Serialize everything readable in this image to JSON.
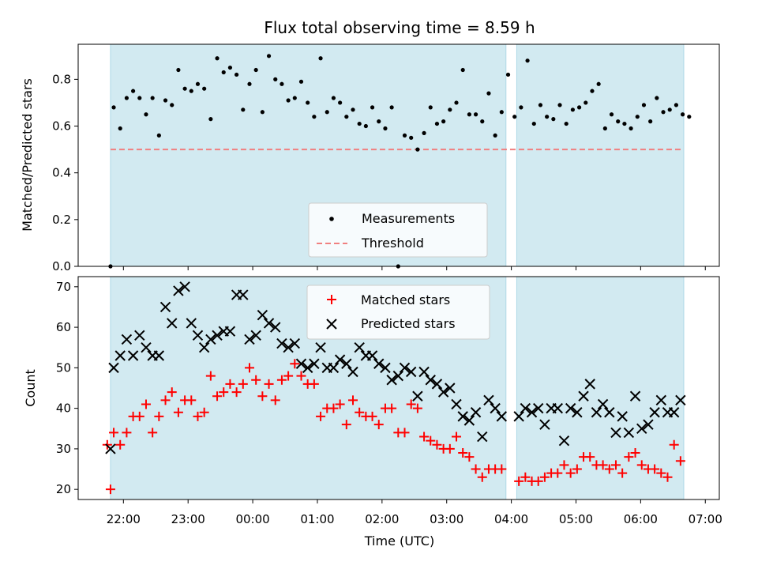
{
  "chart_data": [
    {
      "type": "scatter",
      "title": "Flux total observing time = 8.59 h",
      "xlabel": "",
      "ylabel": "Matched/Predicted stars",
      "ylim": [
        0,
        0.95
      ],
      "yticks": [
        "0.0",
        "0.2",
        "0.4",
        "0.6",
        "0.8"
      ],
      "ytick_values": [
        0.0,
        0.2,
        0.4,
        0.6,
        0.8
      ],
      "legend": {
        "placement": "lower-center",
        "entries": [
          "Measurements",
          "Threshold"
        ]
      },
      "threshold": 0.5,
      "colors": {
        "measurements": "#000000",
        "threshold": "#f08080",
        "shade": "#add8e6"
      },
      "series": [
        {
          "name": "Measurements",
          "marker": "dot",
          "x": [
            "21:48",
            "21:51",
            "21:57",
            "22:03",
            "22:09",
            "22:15",
            "22:21",
            "22:27",
            "22:33",
            "22:39",
            "22:45",
            "22:51",
            "22:57",
            "23:03",
            "23:09",
            "23:15",
            "23:21",
            "23:27",
            "23:33",
            "23:39",
            "23:45",
            "23:51",
            "23:57",
            "00:03",
            "00:09",
            "00:15",
            "00:21",
            "00:27",
            "00:33",
            "00:39",
            "00:45",
            "00:51",
            "00:57",
            "01:03",
            "01:09",
            "01:15",
            "01:21",
            "01:27",
            "01:33",
            "01:39",
            "01:45",
            "01:51",
            "01:57",
            "02:03",
            "02:09",
            "02:15",
            "02:21",
            "02:27",
            "02:33",
            "02:39",
            "02:45",
            "02:51",
            "02:57",
            "03:03",
            "03:09",
            "03:15",
            "03:21",
            "03:27",
            "03:33",
            "03:39",
            "03:45",
            "03:51",
            "03:57",
            "04:03",
            "04:09",
            "04:15",
            "04:21",
            "04:27",
            "04:33",
            "04:39",
            "04:45",
            "04:51",
            "04:57",
            "05:03",
            "05:09",
            "05:15",
            "05:21",
            "05:27",
            "05:33",
            "05:39",
            "05:45",
            "05:51",
            "05:57",
            "06:03",
            "06:09",
            "06:15",
            "06:21",
            "06:27",
            "06:33",
            "06:39",
            "06:45"
          ],
          "y": [
            0.0,
            0.68,
            0.59,
            0.72,
            0.75,
            0.72,
            0.65,
            0.72,
            0.56,
            0.71,
            0.69,
            0.84,
            0.76,
            0.75,
            0.78,
            0.76,
            0.63,
            0.89,
            0.83,
            0.85,
            0.82,
            0.67,
            0.78,
            0.84,
            0.66,
            0.9,
            0.8,
            0.78,
            0.71,
            0.72,
            0.79,
            0.7,
            0.64,
            0.89,
            0.66,
            0.72,
            0.7,
            0.64,
            0.67,
            0.61,
            0.6,
            0.68,
            0.62,
            0.59,
            0.68,
            0.0,
            0.56,
            0.55,
            0.5,
            0.57,
            0.68,
            0.61,
            0.62,
            0.67,
            0.7,
            0.84,
            0.65,
            0.65,
            0.62,
            0.74,
            0.56,
            0.66,
            0.82,
            0.64,
            0.68,
            0.88,
            0.61,
            0.69,
            0.64,
            0.63,
            0.69,
            0.61,
            0.67,
            0.68,
            0.7,
            0.75,
            0.78,
            0.59,
            0.65,
            0.62,
            0.61,
            0.59,
            0.64,
            0.69,
            0.62,
            0.72,
            0.66,
            0.67,
            0.69,
            0.65,
            0.64
          ]
        },
        {
          "name": "Threshold",
          "style": "dashed",
          "x": [
            "21:48",
            "06:40"
          ],
          "y": [
            0.5,
            0.5
          ]
        }
      ],
      "shaded_ranges": [
        [
          "21:48",
          "03:55"
        ],
        [
          "04:05",
          "06:40"
        ]
      ]
    },
    {
      "type": "scatter",
      "title": "",
      "xlabel": "Time (UTC)",
      "ylabel": "Count",
      "ylim": [
        17.5,
        72.5
      ],
      "yticks": [
        "20",
        "30",
        "40",
        "50",
        "60",
        "70"
      ],
      "ytick_values": [
        20,
        30,
        40,
        50,
        60,
        70
      ],
      "xticks": [
        "22:00",
        "23:00",
        "00:00",
        "01:00",
        "02:00",
        "03:00",
        "04:00",
        "05:00",
        "06:00",
        "07:00"
      ],
      "legend": {
        "placement": "top-center",
        "entries": [
          "Matched stars",
          "Predicted stars"
        ]
      },
      "colors": {
        "matched": "#ff0000",
        "predicted": "#000000",
        "shade": "#add8e6"
      },
      "series": [
        {
          "name": "Matched stars",
          "marker": "plus",
          "x": [
            "21:45",
            "21:48",
            "21:51",
            "21:57",
            "22:03",
            "22:09",
            "22:15",
            "22:21",
            "22:27",
            "22:33",
            "22:39",
            "22:45",
            "22:51",
            "22:57",
            "23:03",
            "23:09",
            "23:15",
            "23:21",
            "23:27",
            "23:33",
            "23:39",
            "23:45",
            "23:51",
            "23:57",
            "00:03",
            "00:09",
            "00:15",
            "00:21",
            "00:27",
            "00:33",
            "00:39",
            "00:45",
            "00:51",
            "00:57",
            "01:03",
            "01:09",
            "01:15",
            "01:21",
            "01:27",
            "01:33",
            "01:39",
            "01:45",
            "01:51",
            "01:57",
            "02:03",
            "02:09",
            "02:15",
            "02:21",
            "02:27",
            "02:33",
            "02:39",
            "02:45",
            "02:51",
            "02:57",
            "03:03",
            "03:09",
            "03:15",
            "03:21",
            "03:27",
            "03:33",
            "03:39",
            "03:45",
            "03:51",
            "04:07",
            "04:13",
            "04:19",
            "04:25",
            "04:31",
            "04:37",
            "04:43",
            "04:49",
            "04:55",
            "05:01",
            "05:07",
            "05:13",
            "05:19",
            "05:25",
            "05:31",
            "05:37",
            "05:43",
            "05:49",
            "05:55",
            "06:01",
            "06:07",
            "06:13",
            "06:19",
            "06:25",
            "06:31",
            "06:37"
          ],
          "y": [
            31,
            20,
            34,
            31,
            34,
            38,
            38,
            41,
            34,
            38,
            42,
            44,
            39,
            42,
            42,
            38,
            39,
            48,
            43,
            44,
            46,
            44,
            46,
            50,
            47,
            43,
            46,
            42,
            47,
            48,
            51,
            48,
            46,
            46,
            38,
            40,
            40,
            41,
            36,
            42,
            39,
            38,
            38,
            36,
            40,
            40,
            34,
            34,
            41,
            40,
            33,
            32,
            31,
            30,
            30,
            33,
            29,
            28,
            25,
            23,
            25,
            25,
            25,
            22,
            23,
            22,
            22,
            23,
            24,
            24,
            26,
            24,
            25,
            28,
            28,
            26,
            26,
            25,
            26,
            24,
            28,
            29,
            26,
            25,
            25,
            24,
            23,
            31,
            27
          ]
        },
        {
          "name": "Predicted stars",
          "marker": "x",
          "x": [
            "21:48",
            "21:51",
            "21:57",
            "22:03",
            "22:09",
            "22:15",
            "22:21",
            "22:27",
            "22:33",
            "22:39",
            "22:45",
            "22:51",
            "22:57",
            "23:03",
            "23:09",
            "23:15",
            "23:21",
            "23:27",
            "23:33",
            "23:39",
            "23:45",
            "23:51",
            "23:57",
            "00:03",
            "00:09",
            "00:15",
            "00:21",
            "00:27",
            "00:33",
            "00:39",
            "00:45",
            "00:51",
            "00:57",
            "01:03",
            "01:09",
            "01:15",
            "01:21",
            "01:27",
            "01:33",
            "01:39",
            "01:45",
            "01:51",
            "01:57",
            "02:03",
            "02:09",
            "02:15",
            "02:21",
            "02:27",
            "02:33",
            "02:39",
            "02:45",
            "02:51",
            "02:57",
            "03:03",
            "03:09",
            "03:15",
            "03:21",
            "03:27",
            "03:33",
            "03:39",
            "03:45",
            "03:51",
            "04:07",
            "04:13",
            "04:19",
            "04:25",
            "04:31",
            "04:37",
            "04:43",
            "04:49",
            "04:55",
            "05:01",
            "05:07",
            "05:13",
            "05:19",
            "05:25",
            "05:31",
            "05:37",
            "05:43",
            "05:49",
            "05:55",
            "06:01",
            "06:07",
            "06:13",
            "06:19",
            "06:25",
            "06:31",
            "06:37"
          ],
          "y": [
            30,
            50,
            53,
            57,
            53,
            58,
            55,
            53,
            53,
            65,
            61,
            69,
            70,
            61,
            58,
            55,
            57,
            58,
            59,
            59,
            68,
            68,
            57,
            58,
            63,
            61,
            60,
            56,
            55,
            56,
            51,
            50,
            51,
            55,
            50,
            50,
            52,
            51,
            49,
            55,
            53,
            53,
            51,
            50,
            47,
            48,
            50,
            49,
            43,
            49,
            47,
            46,
            44,
            45,
            41,
            38,
            37,
            39,
            33,
            42,
            40,
            38,
            38,
            40,
            39,
            40,
            36,
            40,
            40,
            32,
            40,
            39,
            43,
            46,
            39,
            41,
            39,
            34,
            38,
            34,
            43,
            35,
            36,
            39,
            42,
            39,
            39,
            42
          ]
        }
      ],
      "shaded_ranges": [
        [
          "21:48",
          "03:55"
        ],
        [
          "04:05",
          "06:40"
        ]
      ]
    }
  ]
}
